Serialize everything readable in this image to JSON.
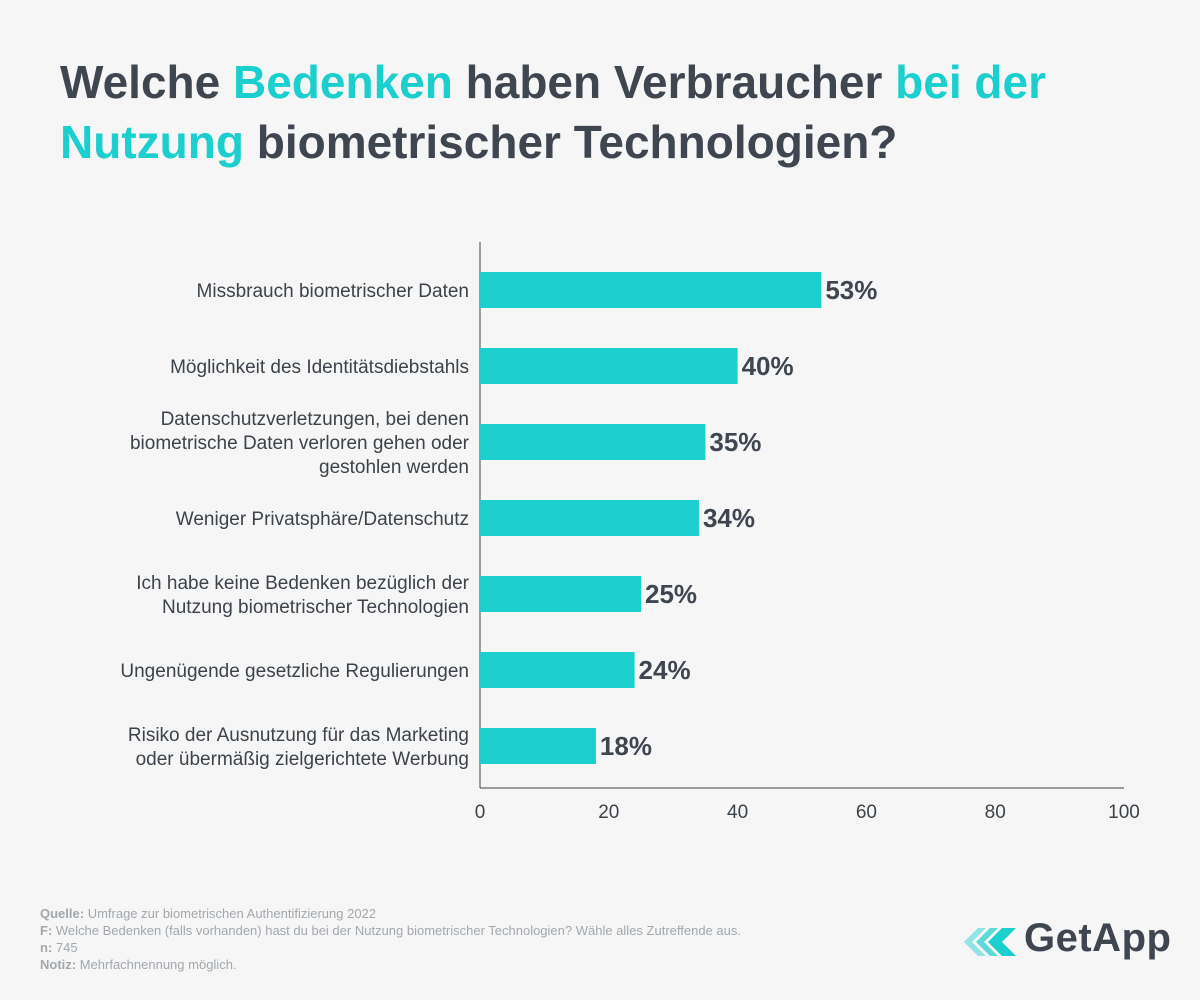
{
  "title": {
    "parts": [
      {
        "text": "Welche ",
        "highlight": false
      },
      {
        "text": "Bedenken",
        "highlight": true
      },
      {
        "text": " haben Verbraucher ",
        "highlight": false
      },
      {
        "text": "bei der Nutzung",
        "highlight": true
      },
      {
        "text": " biometrischer Technologien?",
        "highlight": false
      }
    ]
  },
  "colors": {
    "accent": "#1bcfcf",
    "dark": "#3f4650",
    "muted": "#a3a8ad"
  },
  "chart_data": {
    "type": "bar",
    "orientation": "horizontal",
    "title": "Welche Bedenken haben Verbraucher bei der Nutzung biometrischer Technologien?",
    "categories": [
      [
        "Missbrauch biometrischer Daten"
      ],
      [
        "Möglichkeit des Identitätsdiebstahls"
      ],
      [
        "Datenschutzverletzungen, bei denen",
        "biometrische Daten verloren gehen oder",
        "gestohlen werden"
      ],
      [
        "Weniger Privatsphäre/Datenschutz"
      ],
      [
        "Ich habe keine Bedenken bezüglich der",
        "Nutzung biometrischer Technologien"
      ],
      [
        "Ungenügende gesetzliche Regulierungen"
      ],
      [
        "Risiko der Ausnutzung für das Marketing",
        "oder übermäßig zielgerichtete Werbung"
      ]
    ],
    "values": [
      53,
      40,
      35,
      34,
      25,
      24,
      18
    ],
    "value_labels": [
      "53%",
      "40%",
      "35%",
      "34%",
      "25%",
      "24%",
      "18%"
    ],
    "xlim": [
      0,
      100
    ],
    "xticks": [
      0,
      20,
      40,
      60,
      80,
      100
    ],
    "xlabel": "",
    "ylabel": "",
    "grid": false
  },
  "footer": {
    "source_key": "Quelle:",
    "source": " Umfrage zur biometrischen Authentifizierung 2022",
    "question_key": "F:",
    "question": " Welche Bedenken (falls vorhanden) hast du bei der Nutzung biometrischer Technologien? Wähle alles Zutreffende aus.",
    "n_key": "n:",
    "n": " 745",
    "note_key": "Notiz:",
    "note": " Mehrfachnennung möglich."
  },
  "logo": {
    "text": "GetApp",
    "icon": "getapp-chevrons-icon"
  }
}
